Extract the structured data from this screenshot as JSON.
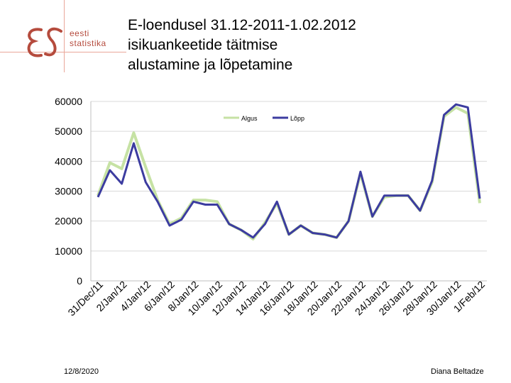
{
  "slide": {
    "title_lines": [
      "E-loendusel 31.12-2011-1.02.2012",
      "isikuankeetide täitmise",
      "alustamine ja lõpetamine"
    ],
    "logo_text_lines": [
      "eesti",
      "statistika"
    ],
    "footer_date": "12/8/2020",
    "footer_author": "Diana Beltadze"
  },
  "chart_data": {
    "type": "line",
    "title": "",
    "xlabel": "",
    "ylabel": "",
    "ylim": [
      0,
      60000
    ],
    "yticks": [
      0,
      10000,
      20000,
      30000,
      40000,
      50000,
      60000
    ],
    "ytick_labels": [
      "0",
      "10000",
      "20000",
      "30000",
      "40000",
      "50000",
      "60000"
    ],
    "categories": [
      "31/Dec/11",
      "1/Jan/12",
      "2/Jan/12",
      "3/Jan/12",
      "4/Jan/12",
      "5/Jan/12",
      "6/Jan/12",
      "7/Jan/12",
      "8/Jan/12",
      "9/Jan/12",
      "10/Jan/12",
      "11/Jan/12",
      "12/Jan/12",
      "13/Jan/12",
      "14/Jan/12",
      "15/Jan/12",
      "16/Jan/12",
      "17/Jan/12",
      "18/Jan/12",
      "19/Jan/12",
      "20/Jan/12",
      "21/Jan/12",
      "22/Jan/12",
      "23/Jan/12",
      "24/Jan/12",
      "25/Jan/12",
      "26/Jan/12",
      "27/Jan/12",
      "28/Jan/12",
      "29/Jan/12",
      "30/Jan/12",
      "31/Jan/12",
      "1/Feb/12"
    ],
    "xtick_labels": [
      "31/Dec/11",
      "2/Jan/12",
      "4/Jan/12",
      "6/Jan/12",
      "8/Jan/12",
      "10/Jan/12",
      "12/Jan/12",
      "14/Jan/12",
      "16/Jan/12",
      "18/Jan/12",
      "20/Jan/12",
      "22/Jan/12",
      "24/Jan/12",
      "26/Jan/12",
      "28/Jan/12",
      "30/Jan/12",
      "1/Feb/12"
    ],
    "grid": true,
    "legend": "top-center",
    "series": [
      {
        "name": "Algus",
        "color": "#c6e2a4",
        "values": [
          28500,
          39500,
          37500,
          49500,
          38000,
          27000,
          19000,
          21000,
          27000,
          27000,
          26500,
          19000,
          17000,
          14000,
          19500,
          26000,
          15500,
          18500,
          16000,
          15500,
          14500,
          20000,
          36000,
          21500,
          28000,
          28500,
          28500,
          23500,
          33000,
          55000,
          58000,
          56000,
          26000
        ]
      },
      {
        "name": "Lõpp",
        "color": "#3c3ca0",
        "values": [
          28000,
          37000,
          32500,
          46000,
          33000,
          26500,
          18500,
          20500,
          26500,
          25500,
          25500,
          19000,
          17000,
          14500,
          19000,
          26500,
          15500,
          18500,
          16000,
          15500,
          14500,
          20000,
          36500,
          21500,
          28500,
          28500,
          28500,
          23500,
          33500,
          55500,
          59000,
          58000,
          27500
        ]
      }
    ]
  }
}
